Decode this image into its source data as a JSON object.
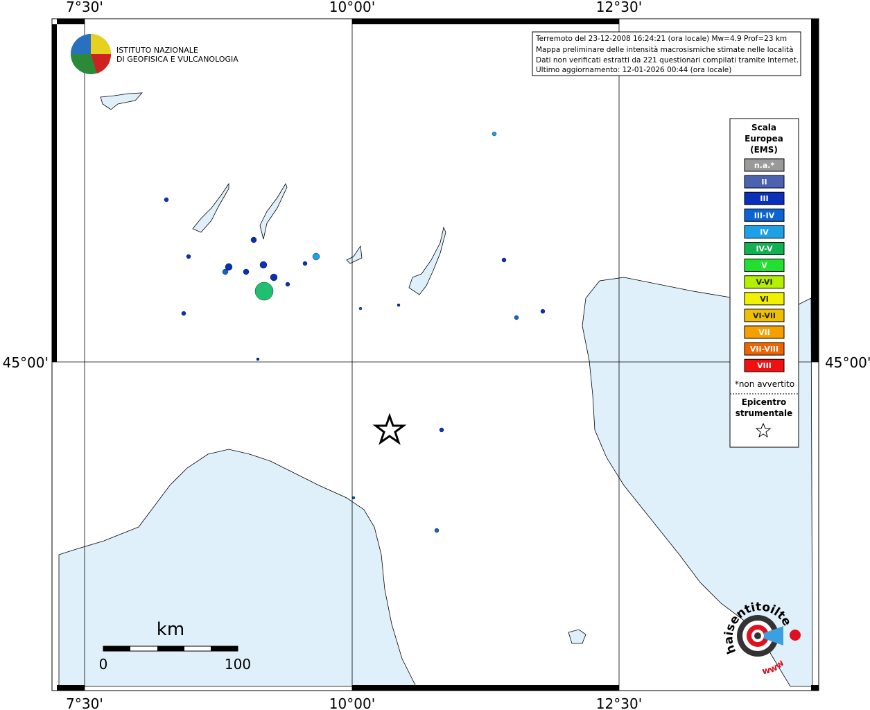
{
  "axes": {
    "top": [
      "7°30'",
      "10°00'",
      "12°30'"
    ],
    "bottom": [
      "7°30'",
      "10°00'",
      "12°30'"
    ],
    "left": [
      "45°00'"
    ],
    "right": [
      "45°00'"
    ]
  },
  "header_lines": [
    "Terremoto del 23-12-2008 16:24:21 (ora locale) Mw=4.9 Prof=23 km",
    "Mappa preliminare delle intensità macrosismiche stimate nelle località",
    "Dati non verificati estratti da 221 questionari compilati tramite Internet.",
    "Ultimo aggiornamento: 12-01-2026 00:44 (ora locale)"
  ],
  "logo": {
    "line1": "ISTITUTO NAZIONALE",
    "line2": "DI GEOFISICA E VULCANOLOGIA"
  },
  "legend": {
    "title": [
      "Scala",
      "Europea",
      "(EMS)"
    ],
    "items": [
      {
        "label": "n.a.*",
        "color": "#9a9a9a"
      },
      {
        "label": "II",
        "color": "#4a62b0"
      },
      {
        "label": "III",
        "color": "#0a2fb8"
      },
      {
        "label": "III-IV",
        "color": "#0a64d2"
      },
      {
        "label": "IV",
        "color": "#1ea0e6"
      },
      {
        "label": "IV-V",
        "color": "#12b050"
      },
      {
        "label": "V",
        "color": "#22e030"
      },
      {
        "label": "V-VI",
        "color": "#b4f000"
      },
      {
        "label": "VI",
        "color": "#f0f000"
      },
      {
        "label": "VI-VII",
        "color": "#f0c000"
      },
      {
        "label": "VII",
        "color": "#f5a000"
      },
      {
        "label": "VII-VIII",
        "color": "#f06400"
      },
      {
        "label": "VIII",
        "color": "#f01010"
      }
    ],
    "footnote": "*non avvertito",
    "epicenter_title": [
      "Epicentro",
      "strumentale"
    ]
  },
  "scale_bar": {
    "unit": "km",
    "labels": [
      "0",
      "100"
    ]
  },
  "badge": {
    "text": "haisentitoilterremoto.it",
    "www": "www"
  }
}
